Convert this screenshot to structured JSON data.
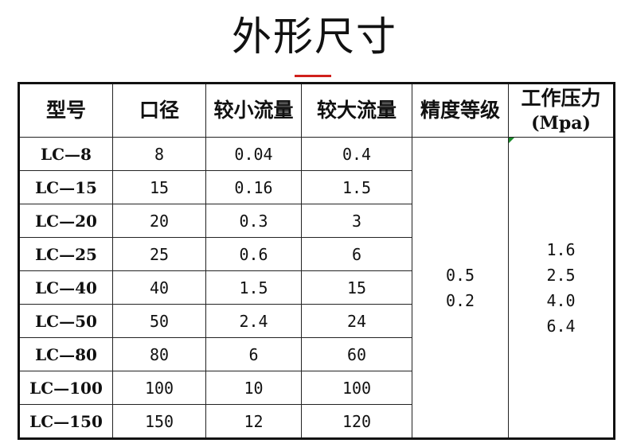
{
  "title": "外形尺寸",
  "headers": [
    "型号",
    "口径",
    "较小流量",
    "较大流量",
    "精度等级",
    "工作压力",
    "(Mpa)"
  ],
  "rows": [
    [
      "LC—8",
      "8",
      "0.04",
      "0.4"
    ],
    [
      "LC—15",
      "15",
      "0.16",
      "1.5"
    ],
    [
      "LC—20",
      "20",
      "0.3",
      "3"
    ],
    [
      "LC—25",
      "25",
      "0.6",
      "6"
    ],
    [
      "LC—40",
      "40",
      "1.5",
      "15"
    ],
    [
      "LC—50",
      "50",
      "2.4",
      "24"
    ],
    [
      "LC—80",
      "80",
      "6",
      "60"
    ],
    [
      "LC—100",
      "100",
      "10",
      "100"
    ],
    [
      "LC—150",
      "150",
      "12",
      "120"
    ]
  ],
  "accuracy": [
    "0.5",
    "0.2"
  ],
  "pressure": [
    "1.6",
    "2.5",
    "4.0",
    "6.4"
  ],
  "accent_color": "#d0201c"
}
